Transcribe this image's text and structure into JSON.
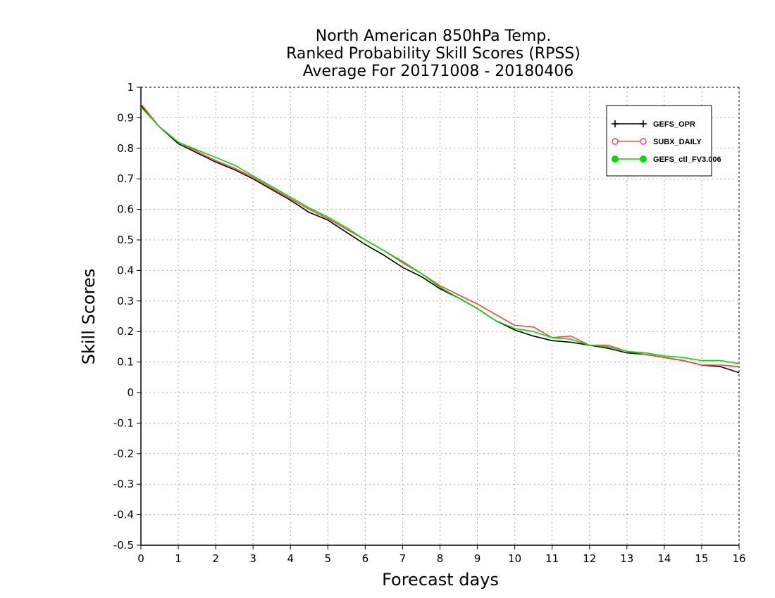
{
  "chart_data": {
    "type": "line",
    "title": [
      "North American 850hPa Temp.",
      "Ranked Probability Skill Scores (RPSS)",
      "Average For 20171008 - 20180406"
    ],
    "xlabel": "Forecast days",
    "ylabel": "Skill Scores",
    "xlim": [
      0,
      16
    ],
    "ylim": [
      -0.5,
      1
    ],
    "x_ticks": [
      0,
      1,
      2,
      3,
      4,
      5,
      6,
      7,
      8,
      9,
      10,
      11,
      12,
      13,
      14,
      15,
      16
    ],
    "y_ticks": [
      -0.5,
      -0.4,
      -0.3,
      -0.2,
      -0.1,
      0,
      0.1,
      0.2,
      0.3,
      0.4,
      0.5,
      0.6,
      0.7,
      0.8,
      0.9,
      1
    ],
    "y_tick_labels": [
      "-0.5",
      "-0.4",
      "-0.3",
      "-0.2",
      "-0.1",
      "0",
      "0.1",
      "0.2",
      "0.3",
      "0.4",
      "0.5",
      "0.6",
      "0.7",
      "0.8",
      "0.9",
      "1"
    ],
    "grid": true,
    "legend_position": "top-right",
    "x": [
      0,
      0.5,
      1,
      1.5,
      2,
      2.5,
      3,
      3.5,
      4,
      4.5,
      5,
      5.5,
      6,
      6.5,
      7,
      7.5,
      8,
      8.5,
      9,
      9.5,
      10,
      10.5,
      11,
      11.5,
      12,
      12.5,
      13,
      13.5,
      14,
      14.5,
      15,
      15.5,
      16
    ],
    "series": [
      {
        "name": "GEFS_OPR",
        "color": "#000000",
        "marker": "plus",
        "values": [
          0.94,
          0.87,
          0.815,
          0.785,
          0.755,
          0.73,
          0.7,
          0.665,
          0.63,
          0.59,
          0.565,
          0.525,
          0.485,
          0.45,
          0.41,
          0.38,
          0.34,
          0.31,
          0.275,
          0.235,
          0.205,
          0.185,
          0.17,
          0.165,
          0.155,
          0.145,
          0.13,
          0.125,
          0.115,
          0.105,
          0.09,
          0.085,
          0.065
        ]
      },
      {
        "name": "SUBX_DAILY",
        "color": "#ff4040",
        "marker": "open-circle",
        "values": [
          0.945,
          0.87,
          0.82,
          0.79,
          0.76,
          0.735,
          0.705,
          0.67,
          0.635,
          0.6,
          0.57,
          0.535,
          0.5,
          0.465,
          0.425,
          0.39,
          0.35,
          0.32,
          0.29,
          0.255,
          0.22,
          0.215,
          0.18,
          0.185,
          0.155,
          0.155,
          0.135,
          0.125,
          0.115,
          0.105,
          0.09,
          0.09,
          0.085
        ]
      },
      {
        "name": "GEFS_ctl_FV3.006",
        "color": "#00dd00",
        "marker": "filled-circle",
        "values": [
          0.935,
          0.87,
          0.82,
          0.795,
          0.77,
          0.745,
          0.71,
          0.675,
          0.64,
          0.605,
          0.575,
          0.54,
          0.5,
          0.465,
          0.43,
          0.39,
          0.345,
          0.31,
          0.275,
          0.235,
          0.21,
          0.2,
          0.18,
          0.175,
          0.155,
          0.15,
          0.135,
          0.13,
          0.12,
          0.115,
          0.105,
          0.105,
          0.095
        ]
      }
    ]
  }
}
